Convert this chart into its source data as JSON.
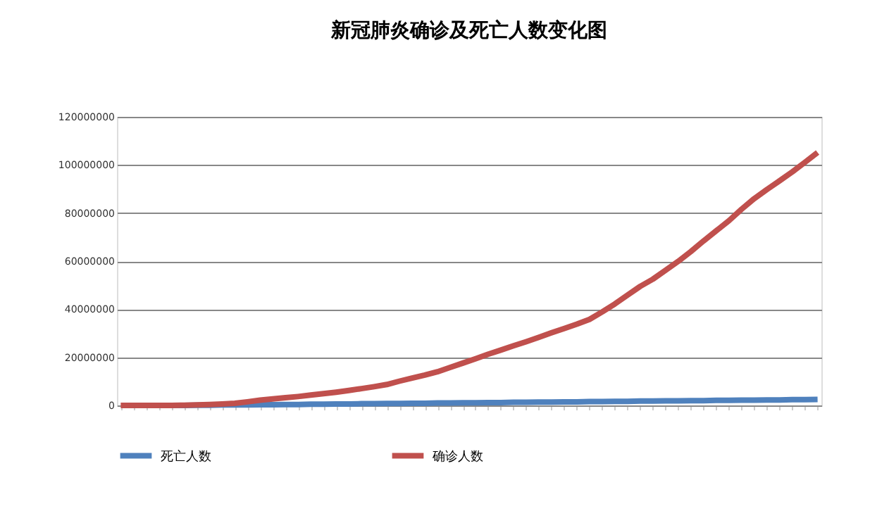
{
  "chart_data": {
    "type": "line",
    "title": "新冠肺炎确诊及死亡人数变化图",
    "categories": [
      null,
      null,
      null,
      null,
      null,
      null,
      null,
      null,
      null,
      null,
      null,
      null,
      null,
      null,
      null,
      null,
      null,
      null,
      null,
      null,
      null,
      null,
      null,
      null,
      null,
      null,
      null,
      null,
      null,
      null,
      null,
      null,
      null,
      null,
      null,
      null,
      null,
      null,
      null,
      null,
      null,
      null,
      null,
      null,
      null,
      null,
      null,
      null,
      null,
      null,
      null,
      null,
      null,
      null,
      null,
      null
    ],
    "series": [
      {
        "name": "死亡人数",
        "color": "#4f81bd",
        "values": [
          null,
          null,
          null,
          null,
          0,
          0,
          100000,
          100000,
          200000,
          200000,
          200000,
          300000,
          300000,
          400000,
          400000,
          500000,
          500000,
          600000,
          600000,
          700000,
          700000,
          800000,
          800000,
          900000,
          900000,
          1000000,
          1000000,
          1100000,
          1100000,
          1200000,
          1200000,
          1300000,
          1300000,
          1400000,
          1400000,
          1500000,
          1500000,
          1600000,
          1600000,
          1700000,
          1700000,
          1800000,
          1800000,
          1900000,
          1900000,
          2000000,
          2000000,
          2100000,
          2100000,
          2200000,
          2200000,
          2300000,
          2300000,
          2400000,
          2400000,
          2500000
        ]
      },
      {
        "name": "确诊人数",
        "color": "#c0504d",
        "values": [
          0,
          0,
          0,
          0,
          0,
          100000,
          200000,
          400000,
          600000,
          900000,
          1500000,
          2200000,
          2700000,
          3200000,
          3700000,
          4300000,
          4900000,
          5500000,
          6200000,
          7000000,
          7800000,
          8700000,
          10100000,
          11400000,
          12600000,
          14000000,
          15800000,
          17600000,
          19400000,
          21300000,
          23000000,
          24800000,
          26500000,
          28300000,
          30200000,
          32000000,
          33800000,
          35800000,
          38900000,
          42200000,
          45900000,
          49500000,
          52500000,
          56200000,
          59900000,
          64000000,
          68400000,
          72600000,
          76800000,
          81600000,
          86000000,
          89800000,
          93400000,
          97100000,
          101100000,
          105200000
        ]
      }
    ],
    "ylim": [
      0,
      120000000
    ],
    "yticks": [
      0,
      20000000,
      40000000,
      60000000,
      80000000,
      100000000,
      120000000
    ],
    "grid": "y",
    "legend": "bottom",
    "tick_labels": "y",
    "marker": "none",
    "line_style": "solid"
  }
}
